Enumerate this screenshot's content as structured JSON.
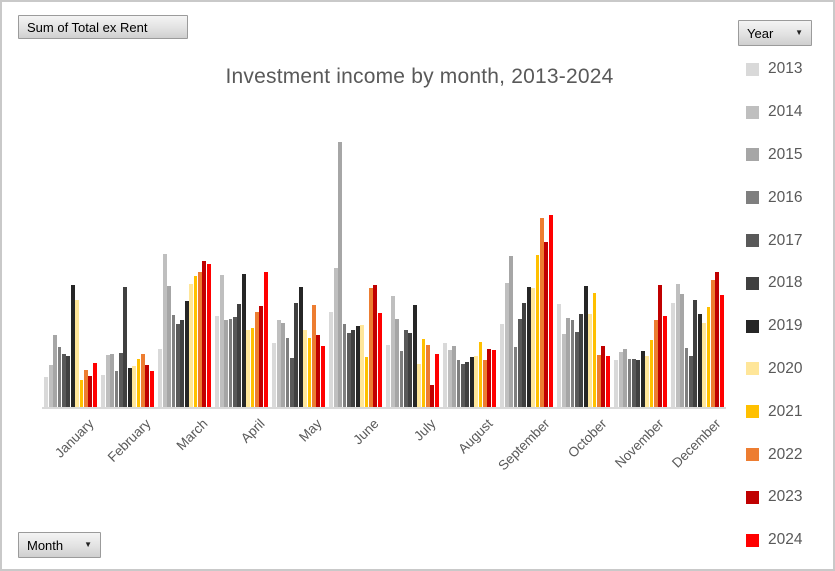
{
  "window": {
    "background": "#ffffff",
    "border_color": "#c9c9c9"
  },
  "field_buttons": {
    "value_label": "Sum of Total ex Rent",
    "year_label": "Year",
    "month_label": "Month",
    "dropdown_arrow": "▼"
  },
  "chart_data": {
    "type": "bar",
    "title": "Investment income by month, 2013-2024",
    "title_color": "#595959",
    "xlabel": "",
    "ylabel": "",
    "ylim": [
      0,
      270
    ],
    "grid": false,
    "value_axis_labels_shown": false,
    "axis_line_color": "#d9d9d9",
    "legend_position": "right",
    "categories": [
      "January",
      "February",
      "March",
      "April",
      "May",
      "June",
      "July",
      "August",
      "September",
      "October",
      "November",
      "December"
    ],
    "series": [
      {
        "name": "2013",
        "color": "#D9D9D9",
        "values": [
          30,
          32,
          58,
          91,
          64,
          95,
          62,
          64,
          83,
          103,
          47,
          104
        ]
      },
      {
        "name": "2014",
        "color": "#BFBFBF",
        "values": [
          42,
          52,
          153,
          132,
          87,
          139,
          111,
          57,
          124,
          73,
          55,
          123
        ]
      },
      {
        "name": "2015",
        "color": "#A6A6A6",
        "values": [
          72,
          53,
          121,
          87,
          84,
          265,
          88,
          61,
          151,
          89,
          58,
          113
        ]
      },
      {
        "name": "2016",
        "color": "#7F7F7F",
        "values": [
          60,
          36,
          92,
          88,
          69,
          83,
          56,
          47,
          60,
          87,
          48,
          59
        ]
      },
      {
        "name": "2017",
        "color": "#595959",
        "values": [
          53,
          54,
          83,
          90,
          49,
          74,
          77,
          43,
          88,
          75,
          48,
          51
        ]
      },
      {
        "name": "2018",
        "color": "#404040",
        "values": [
          51,
          120,
          87,
          103,
          104,
          77,
          74,
          45,
          104,
          93,
          47,
          107
        ]
      },
      {
        "name": "2019",
        "color": "#262626",
        "values": [
          122,
          39,
          106,
          133,
          120,
          81,
          102,
          50,
          120,
          121,
          56,
          93
        ]
      },
      {
        "name": "2020",
        "color": "#FFE699",
        "values": [
          107,
          41,
          123,
          77,
          77,
          82,
          43,
          51,
          119,
          93,
          51,
          84
        ]
      },
      {
        "name": "2021",
        "color": "#FFC000",
        "values": [
          27,
          48,
          131,
          79,
          69,
          50,
          68,
          65,
          152,
          114,
          67,
          100
        ]
      },
      {
        "name": "2022",
        "color": "#ED7D31",
        "values": [
          37,
          53,
          135,
          95,
          102,
          119,
          62,
          47,
          189,
          52,
          87,
          127
        ]
      },
      {
        "name": "2023",
        "color": "#C00000",
        "values": [
          31,
          42,
          146,
          101,
          72,
          122,
          22,
          58,
          165,
          61,
          122,
          135
        ]
      },
      {
        "name": "2024",
        "color": "#FF0000",
        "values": [
          44,
          36,
          143,
          135,
          61,
          94,
          53,
          57,
          192,
          51,
          91,
          112
        ]
      }
    ]
  }
}
